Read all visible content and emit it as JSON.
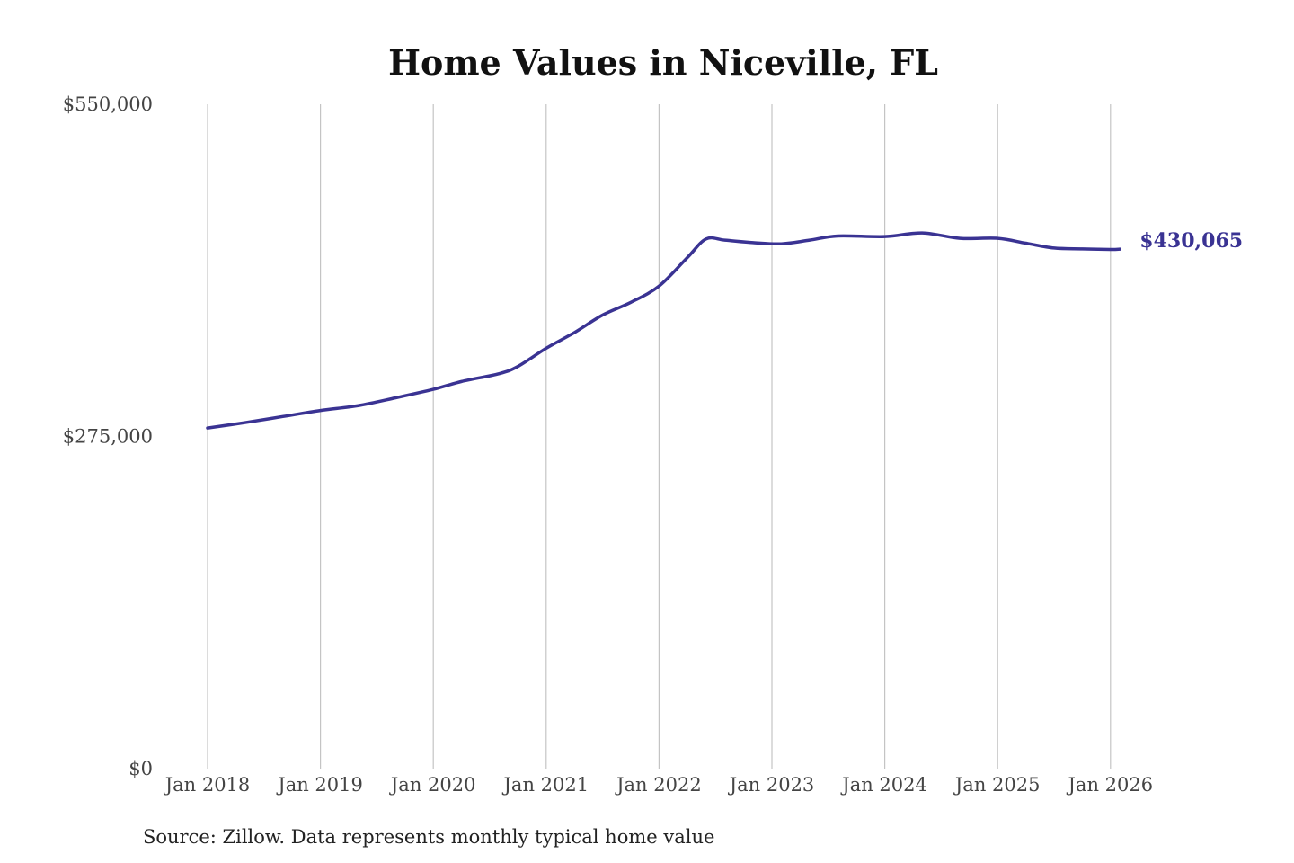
{
  "chart_data": {
    "type": "line",
    "title": "Home Values in Niceville, FL",
    "source": "Source: Zillow. Data represents monthly typical home value",
    "xlabel": "",
    "ylabel": "",
    "ylim": [
      0,
      550000
    ],
    "xlim": [
      "2018-01",
      "2026-02"
    ],
    "y_ticks": [
      {
        "value": 0,
        "label": "$0"
      },
      {
        "value": 275000,
        "label": "$275,000"
      },
      {
        "value": 550000,
        "label": "$550,000"
      }
    ],
    "x_ticks": [
      {
        "value": "2018-01",
        "label": "Jan 2018"
      },
      {
        "value": "2019-01",
        "label": "Jan 2019"
      },
      {
        "value": "2020-01",
        "label": "Jan 2020"
      },
      {
        "value": "2021-01",
        "label": "Jan 2021"
      },
      {
        "value": "2022-01",
        "label": "Jan 2022"
      },
      {
        "value": "2023-01",
        "label": "Jan 2023"
      },
      {
        "value": "2024-01",
        "label": "Jan 2024"
      },
      {
        "value": "2025-01",
        "label": "Jan 2025"
      },
      {
        "value": "2026-01",
        "label": "Jan 2026"
      }
    ],
    "grid": {
      "vertical": true,
      "horizontal": false
    },
    "line_color": "#3a3393",
    "end_label": "$430,065",
    "points": [
      {
        "x": "2018-01",
        "y": 282000
      },
      {
        "x": "2018-05",
        "y": 286500
      },
      {
        "x": "2018-09",
        "y": 291500
      },
      {
        "x": "2019-01",
        "y": 296500
      },
      {
        "x": "2019-05",
        "y": 300500
      },
      {
        "x": "2019-09",
        "y": 307000
      },
      {
        "x": "2020-01",
        "y": 314000
      },
      {
        "x": "2020-04",
        "y": 320500
      },
      {
        "x": "2020-08",
        "y": 327000
      },
      {
        "x": "2020-10",
        "y": 333000
      },
      {
        "x": "2021-01",
        "y": 348000
      },
      {
        "x": "2021-04",
        "y": 361000
      },
      {
        "x": "2021-07",
        "y": 375500
      },
      {
        "x": "2021-10",
        "y": 386000
      },
      {
        "x": "2022-01",
        "y": 399500
      },
      {
        "x": "2022-04",
        "y": 423000
      },
      {
        "x": "2022-06",
        "y": 438500
      },
      {
        "x": "2022-08",
        "y": 437500
      },
      {
        "x": "2022-11",
        "y": 435500
      },
      {
        "x": "2023-02",
        "y": 434500
      },
      {
        "x": "2023-05",
        "y": 437500
      },
      {
        "x": "2023-08",
        "y": 441000
      },
      {
        "x": "2024-01",
        "y": 440500
      },
      {
        "x": "2024-05",
        "y": 443500
      },
      {
        "x": "2024-09",
        "y": 439000
      },
      {
        "x": "2025-01",
        "y": 439000
      },
      {
        "x": "2025-04",
        "y": 435000
      },
      {
        "x": "2025-07",
        "y": 431000
      },
      {
        "x": "2025-10",
        "y": 430300
      },
      {
        "x": "2026-01",
        "y": 429800
      },
      {
        "x": "2026-02",
        "y": 430065
      }
    ]
  }
}
